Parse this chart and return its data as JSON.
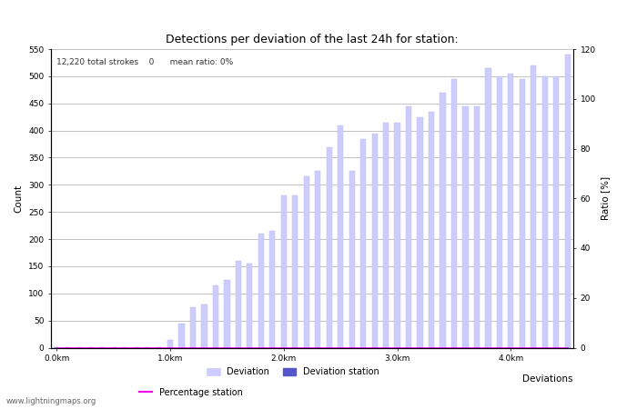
{
  "title": "Detections per deviation of the last 24h for station:",
  "annotation": "12,220 total strokes    0      mean ratio: 0%",
  "xlabel": "Deviations",
  "ylabel_left": "Count",
  "ylabel_right": "Ratio [%]",
  "ylim_left": [
    0,
    550
  ],
  "ylim_right": [
    0,
    120
  ],
  "yticks_left": [
    0,
    50,
    100,
    150,
    200,
    250,
    300,
    350,
    400,
    450,
    500,
    550
  ],
  "yticks_right": [
    0,
    20,
    40,
    60,
    80,
    100,
    120
  ],
  "xtick_positions": [
    0,
    10,
    20,
    30,
    40
  ],
  "xtick_labels": [
    "0.0km",
    "1.0km",
    "2.0km",
    "3.0km",
    "4.0km"
  ],
  "bar_color": "#ccccff",
  "bar_edge_color": "#bbbbee",
  "station_bar_color": "#5555cc",
  "percentage_line_color": "#ee00ee",
  "bar_values": [
    1,
    1,
    1,
    1,
    1,
    1,
    1,
    1,
    1,
    1,
    15,
    45,
    75,
    80,
    115,
    125,
    160,
    155,
    210,
    215,
    280,
    280,
    315,
    325,
    370,
    410,
    325,
    385,
    395,
    415,
    415,
    445,
    425,
    435,
    470,
    495,
    445,
    445,
    515,
    500,
    505,
    495,
    520,
    500,
    500,
    540
  ],
  "station_bar_values": [
    0,
    0,
    0,
    0,
    0,
    0,
    0,
    0,
    0,
    0,
    0,
    0,
    0,
    0,
    0,
    0,
    0,
    0,
    0,
    0,
    0,
    0,
    0,
    0,
    0,
    0,
    0,
    0,
    0,
    0,
    0,
    0,
    0,
    0,
    0,
    0,
    0,
    0,
    0,
    0,
    0,
    0,
    0,
    0,
    0,
    0
  ],
  "percentage_values": [
    0,
    0,
    0,
    0,
    0,
    0,
    0,
    0,
    0,
    0,
    0,
    0,
    0,
    0,
    0,
    0,
    0,
    0,
    0,
    0,
    0,
    0,
    0,
    0,
    0,
    0,
    0,
    0,
    0,
    0,
    0,
    0,
    0,
    0,
    0,
    0,
    0,
    0,
    0,
    0,
    0,
    0,
    0,
    0,
    0,
    0
  ],
  "legend_deviation_label": "Deviation",
  "legend_station_label": "Deviation station",
  "legend_percentage_label": "Percentage station",
  "watermark": "www.lightningmaps.org",
  "bg_color": "#ffffff",
  "grid_color": "#aaaaaa",
  "bar_width": 0.5
}
